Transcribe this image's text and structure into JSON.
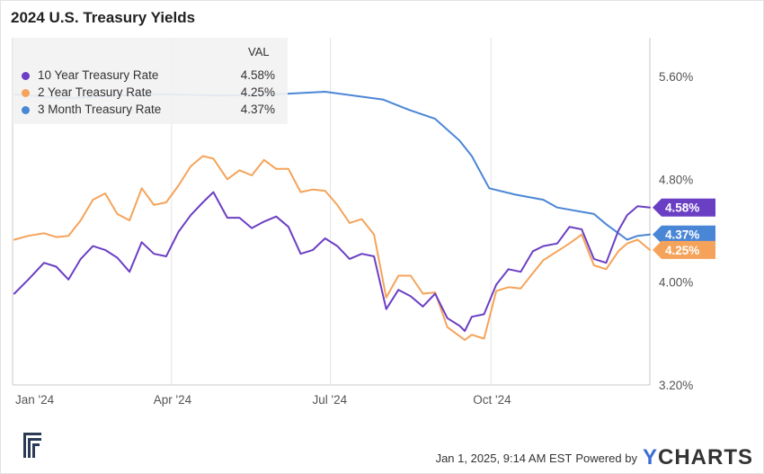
{
  "title": "2024 U.S. Treasury Yields",
  "legend": {
    "header": "VAL",
    "items": [
      {
        "name": "10 Year Treasury Rate",
        "value": "4.58%",
        "color": "#6b3fc4"
      },
      {
        "name": "2 Year Treasury Rate",
        "value": "4.25%",
        "color": "#f5a35a"
      },
      {
        "name": "3 Month Treasury Rate",
        "value": "4.37%",
        "color": "#4a86d6"
      }
    ]
  },
  "footer": {
    "timestamp": "Jan 1, 2025, 9:14 AM EST",
    "powered_by": "Powered by",
    "brand_y": "Y",
    "brand_rest": "CHARTS"
  },
  "chart_data": {
    "type": "line",
    "title": "2024 U.S. Treasury Yields",
    "x_domain": [
      "2024-01-01",
      "2024-12-31"
    ],
    "ylim": [
      3.2,
      5.9
    ],
    "y_ticks": [
      "5.60%",
      "4.80%",
      "4.00%",
      "3.20%"
    ],
    "y_tick_values": [
      5.6,
      4.8,
      4.0,
      3.2
    ],
    "x_ticks": [
      "Jan '24",
      "Apr '24",
      "Jul '24",
      "Oct '24"
    ],
    "x_tick_dates": [
      "2024-01-01",
      "2024-04-01",
      "2024-07-01",
      "2024-10-01"
    ],
    "grid": "vertical",
    "legend_position": "top-left",
    "end_labels": [
      "4.58%",
      "4.37%",
      "4.25%"
    ],
    "series": [
      {
        "name": "10 Year Treasury Rate",
        "color": "#6b3fc4",
        "x": [
          "2024-01-02",
          "2024-01-10",
          "2024-01-19",
          "2024-01-26",
          "2024-02-02",
          "2024-02-09",
          "2024-02-16",
          "2024-02-23",
          "2024-03-01",
          "2024-03-08",
          "2024-03-15",
          "2024-03-22",
          "2024-03-29",
          "2024-04-05",
          "2024-04-12",
          "2024-04-19",
          "2024-04-25",
          "2024-05-03",
          "2024-05-10",
          "2024-05-17",
          "2024-05-24",
          "2024-05-31",
          "2024-06-07",
          "2024-06-14",
          "2024-06-21",
          "2024-06-28",
          "2024-07-05",
          "2024-07-12",
          "2024-07-19",
          "2024-07-26",
          "2024-08-02",
          "2024-08-09",
          "2024-08-16",
          "2024-08-23",
          "2024-08-30",
          "2024-09-06",
          "2024-09-13",
          "2024-09-16",
          "2024-09-20",
          "2024-09-27",
          "2024-10-04",
          "2024-10-11",
          "2024-10-18",
          "2024-10-25",
          "2024-10-31",
          "2024-11-08",
          "2024-11-15",
          "2024-11-22",
          "2024-11-29",
          "2024-12-06",
          "2024-12-13",
          "2024-12-18",
          "2024-12-24",
          "2024-12-31"
        ],
        "values": [
          3.91,
          4.02,
          4.15,
          4.12,
          4.02,
          4.18,
          4.28,
          4.25,
          4.19,
          4.08,
          4.31,
          4.22,
          4.2,
          4.39,
          4.52,
          4.62,
          4.7,
          4.5,
          4.5,
          4.42,
          4.47,
          4.51,
          4.43,
          4.22,
          4.25,
          4.34,
          4.28,
          4.18,
          4.22,
          4.2,
          3.79,
          3.94,
          3.89,
          3.81,
          3.91,
          3.72,
          3.66,
          3.62,
          3.73,
          3.75,
          3.98,
          4.1,
          4.08,
          4.24,
          4.28,
          4.3,
          4.43,
          4.41,
          4.18,
          4.15,
          4.4,
          4.52,
          4.59,
          4.58
        ]
      },
      {
        "name": "2 Year Treasury Rate",
        "color": "#f5a35a",
        "x": [
          "2024-01-02",
          "2024-01-10",
          "2024-01-19",
          "2024-01-26",
          "2024-02-02",
          "2024-02-09",
          "2024-02-16",
          "2024-02-23",
          "2024-03-01",
          "2024-03-08",
          "2024-03-15",
          "2024-03-22",
          "2024-03-29",
          "2024-04-05",
          "2024-04-12",
          "2024-04-19",
          "2024-04-25",
          "2024-05-03",
          "2024-05-10",
          "2024-05-17",
          "2024-05-24",
          "2024-05-31",
          "2024-06-07",
          "2024-06-14",
          "2024-06-21",
          "2024-06-28",
          "2024-07-05",
          "2024-07-12",
          "2024-07-19",
          "2024-07-26",
          "2024-08-02",
          "2024-08-09",
          "2024-08-16",
          "2024-08-23",
          "2024-08-30",
          "2024-09-06",
          "2024-09-13",
          "2024-09-16",
          "2024-09-20",
          "2024-09-27",
          "2024-10-04",
          "2024-10-11",
          "2024-10-18",
          "2024-10-25",
          "2024-10-31",
          "2024-11-08",
          "2024-11-15",
          "2024-11-22",
          "2024-11-29",
          "2024-12-06",
          "2024-12-13",
          "2024-12-18",
          "2024-12-24",
          "2024-12-31"
        ],
        "values": [
          4.33,
          4.36,
          4.38,
          4.35,
          4.36,
          4.48,
          4.64,
          4.69,
          4.53,
          4.48,
          4.73,
          4.6,
          4.62,
          4.75,
          4.9,
          4.98,
          4.96,
          4.8,
          4.87,
          4.83,
          4.95,
          4.88,
          4.88,
          4.7,
          4.72,
          4.71,
          4.6,
          4.46,
          4.49,
          4.37,
          3.88,
          4.05,
          4.05,
          3.91,
          3.92,
          3.65,
          3.58,
          3.55,
          3.59,
          3.56,
          3.93,
          3.96,
          3.95,
          4.07,
          4.17,
          4.24,
          4.3,
          4.37,
          4.13,
          4.1,
          4.24,
          4.3,
          4.33,
          4.25
        ]
      },
      {
        "name": "3 Month Treasury Rate",
        "color": "#4a86d6",
        "x": [
          "2024-01-02",
          "2024-01-31",
          "2024-02-29",
          "2024-03-28",
          "2024-04-30",
          "2024-05-31",
          "2024-06-28",
          "2024-07-31",
          "2024-08-15",
          "2024-08-30",
          "2024-09-13",
          "2024-09-20",
          "2024-09-30",
          "2024-10-15",
          "2024-10-31",
          "2024-11-08",
          "2024-11-29",
          "2024-12-06",
          "2024-12-13",
          "2024-12-18",
          "2024-12-24",
          "2024-12-31"
        ],
        "values": [
          5.46,
          5.43,
          5.45,
          5.46,
          5.45,
          5.46,
          5.48,
          5.42,
          5.34,
          5.27,
          5.1,
          4.98,
          4.73,
          4.68,
          4.64,
          4.58,
          4.53,
          4.45,
          4.38,
          4.33,
          4.36,
          4.37
        ]
      }
    ]
  }
}
